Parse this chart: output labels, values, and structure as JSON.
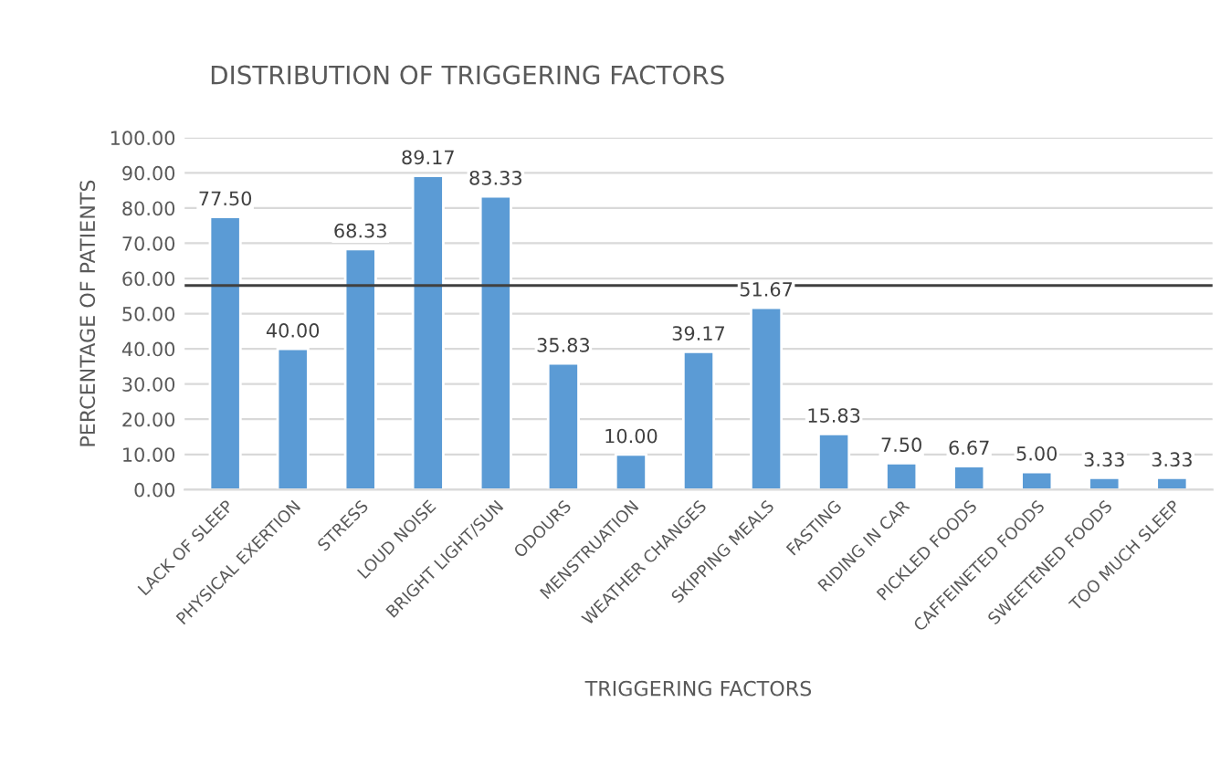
{
  "chart_data": {
    "type": "bar",
    "title": "DISTRIBUTION OF TRIGGERING FACTORS",
    "xlabel": "TRIGGERING FACTORS",
    "ylabel": "PERCENTAGE OF PATIENTS",
    "categories": [
      "LACK OF SLEEP",
      "PHYSICAL EXERTION",
      "STRESS",
      "LOUD NOISE",
      "BRIGHT LIGHT/SUN",
      "ODOURS",
      "MENSTRUATION",
      "WEATHER CHANGES",
      "SKIPPING MEALS",
      "FASTING",
      "RIDING IN CAR",
      "PICKLED FOODS",
      "CAFFEINETED FOODS",
      "SWEETENED FOODS",
      "TOO MUCH SLEEP"
    ],
    "values": [
      77.5,
      40.0,
      68.33,
      89.17,
      83.33,
      35.83,
      10.0,
      39.17,
      51.67,
      15.83,
      7.5,
      6.67,
      5.0,
      3.33,
      3.33
    ],
    "value_labels": [
      "77.50",
      "40.00",
      "68.33",
      "89.17",
      "83.33",
      "35.83",
      "10.00",
      "39.17",
      "51.67",
      "15.83",
      "7.50",
      "6.67",
      "5.00",
      "3.33",
      "3.33"
    ],
    "color": "#5b9bd5",
    "ylim": [
      0,
      100
    ],
    "yticks": [
      {
        "value": 0,
        "label": "0.00"
      },
      {
        "value": 10,
        "label": "10.00"
      },
      {
        "value": 20,
        "label": "20.00"
      },
      {
        "value": 30,
        "label": "30.00"
      },
      {
        "value": 40,
        "label": "40.00"
      },
      {
        "value": 50,
        "label": "50.00"
      },
      {
        "value": 60,
        "label": "60.00"
      },
      {
        "value": 70,
        "label": "70.00"
      },
      {
        "value": 80,
        "label": "80.00"
      },
      {
        "value": 90,
        "label": "90.00"
      },
      {
        "value": 100,
        "label": "100.00"
      }
    ],
    "grid": "y",
    "legend": false,
    "ref_lines": [
      {
        "axis": "y",
        "value": 58,
        "color": "#404040"
      }
    ]
  }
}
